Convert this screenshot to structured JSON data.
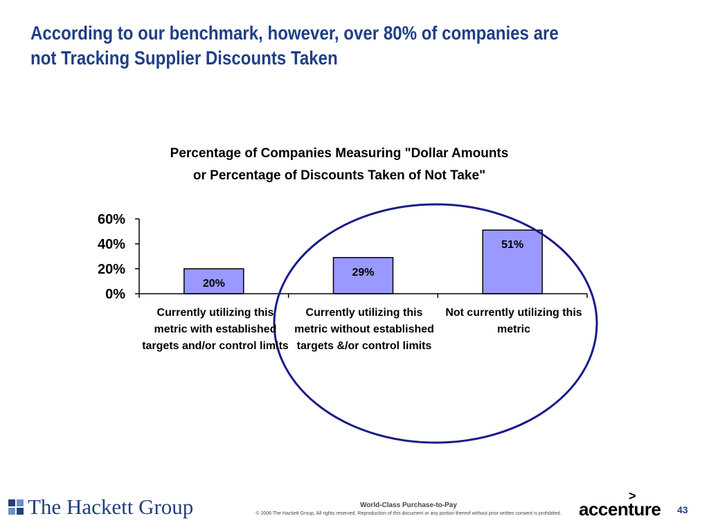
{
  "slide": {
    "title_line1": "According to our benchmark, however, over 80% of companies are",
    "title_line2": "not Tracking Supplier Discounts Taken",
    "title_color": "#1f3f86"
  },
  "chart_data": {
    "type": "bar",
    "title_line1": "Percentage of Companies Measuring \"Dollar Amounts",
    "title_line2": "or Percentage of Discounts Taken of Not Take\"",
    "categories": [
      "Currently utilizing this metric with established targets and/or control limits",
      "Currently utilizing this metric without established targets &/or control limits",
      "Not currently utilizing this metric"
    ],
    "values": [
      20,
      29,
      51
    ],
    "data_labels": [
      "20%",
      "29%",
      "51%"
    ],
    "ylim": [
      0,
      60
    ],
    "y_ticks": [
      0,
      20,
      40,
      60
    ],
    "y_tick_labels": [
      "0%",
      "20%",
      "40%",
      "60%"
    ],
    "bar_color": "#9999ff",
    "grid": false,
    "legend": "none",
    "annotation": {
      "shape": "ellipse",
      "color": "#1a1a8a",
      "encloses_categories": [
        1,
        2
      ]
    }
  },
  "footer": {
    "company": "The Hackett Group",
    "subtitle": "World-Class Purchase-to-Pay",
    "copyright": "© 2006 The Hackett Group.  All rights reserved. Reproduction of this document or any portion thereof without prior written consent is prohibited.",
    "partner_logo": "accenture",
    "partner_arrow": ">",
    "page_number": "43",
    "logo_icon": "hackett-squares-icon"
  }
}
